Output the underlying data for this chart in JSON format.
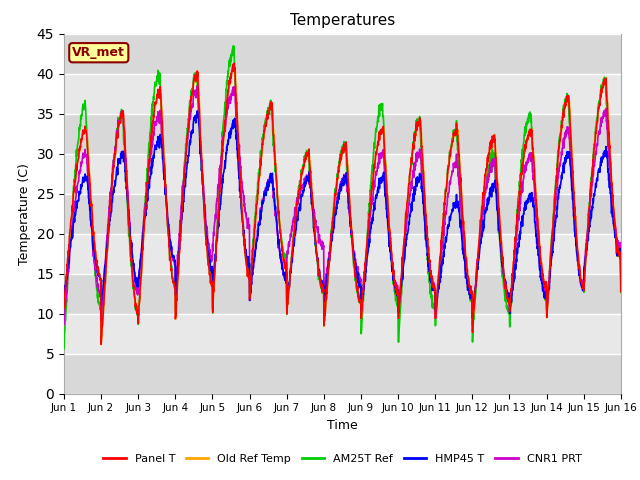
{
  "title": "Temperatures",
  "xlabel": "Time",
  "ylabel": "Temperature (C)",
  "ylim": [
    0,
    45
  ],
  "xlim": [
    0,
    15
  ],
  "fig_bg_color": "#ffffff",
  "plot_bg_color": "#e8e8e8",
  "x_tick_labels": [
    "Jun 1",
    "Jun 2",
    "Jun 3",
    "Jun 4",
    "Jun 5",
    "Jun 6",
    "Jun 7",
    "Jun 8",
    "Jun 9",
    "Jun 10",
    "Jun 11",
    "Jun 12",
    "Jun 13",
    "Jun 14",
    "Jun 15",
    "Jun 16"
  ],
  "yticks": [
    0,
    5,
    10,
    15,
    20,
    25,
    30,
    35,
    40,
    45
  ],
  "series": {
    "Panel T": {
      "color": "#ff0000",
      "lw": 1.2
    },
    "Old Ref Temp": {
      "color": "#ffa500",
      "lw": 1.2
    },
    "AM25T Ref": {
      "color": "#00cc00",
      "lw": 1.2
    },
    "HMP45 T": {
      "color": "#0000ff",
      "lw": 1.2
    },
    "CNR1 PRT": {
      "color": "#cc00cc",
      "lw": 1.2
    }
  },
  "annotation_text": "VR_met",
  "annotation_color": "#8b0000",
  "annotation_bg": "#ffff99",
  "grid_color": "#ffffff",
  "grid_lw": 1.0,
  "band_colors": [
    "#dcdcdc",
    "#e8e8e8"
  ],
  "day_peaks": [
    33,
    35,
    38,
    40,
    41,
    36,
    30,
    31,
    33,
    34,
    33,
    32,
    33,
    37,
    39
  ],
  "day_troughs": [
    11,
    6,
    9,
    9,
    10,
    12,
    10,
    8,
    9,
    9,
    9,
    8,
    10,
    9,
    13
  ],
  "green_peaks": [
    36,
    35,
    40,
    40,
    43,
    36,
    30,
    31,
    36,
    34,
    33,
    30,
    35,
    37,
    39
  ],
  "green_troughs": [
    6,
    6,
    9,
    10,
    10,
    13,
    10,
    8,
    7,
    6,
    8,
    7,
    8,
    9,
    13
  ],
  "blue_peaks": [
    27,
    30,
    32,
    35,
    34,
    27,
    27,
    27,
    27,
    27,
    24,
    26,
    25,
    30,
    30
  ],
  "blue_troughs": [
    12,
    11,
    14,
    12,
    13,
    12,
    11,
    11,
    10,
    10,
    10,
    10,
    10,
    10,
    15
  ],
  "purple_peaks": [
    30,
    35,
    35,
    38,
    38,
    27,
    27,
    27,
    30,
    30,
    29,
    29,
    30,
    33,
    35
  ],
  "purple_troughs": [
    9,
    9,
    13,
    13,
    18,
    12,
    17,
    12,
    10,
    10,
    9,
    9,
    10,
    10,
    15
  ]
}
